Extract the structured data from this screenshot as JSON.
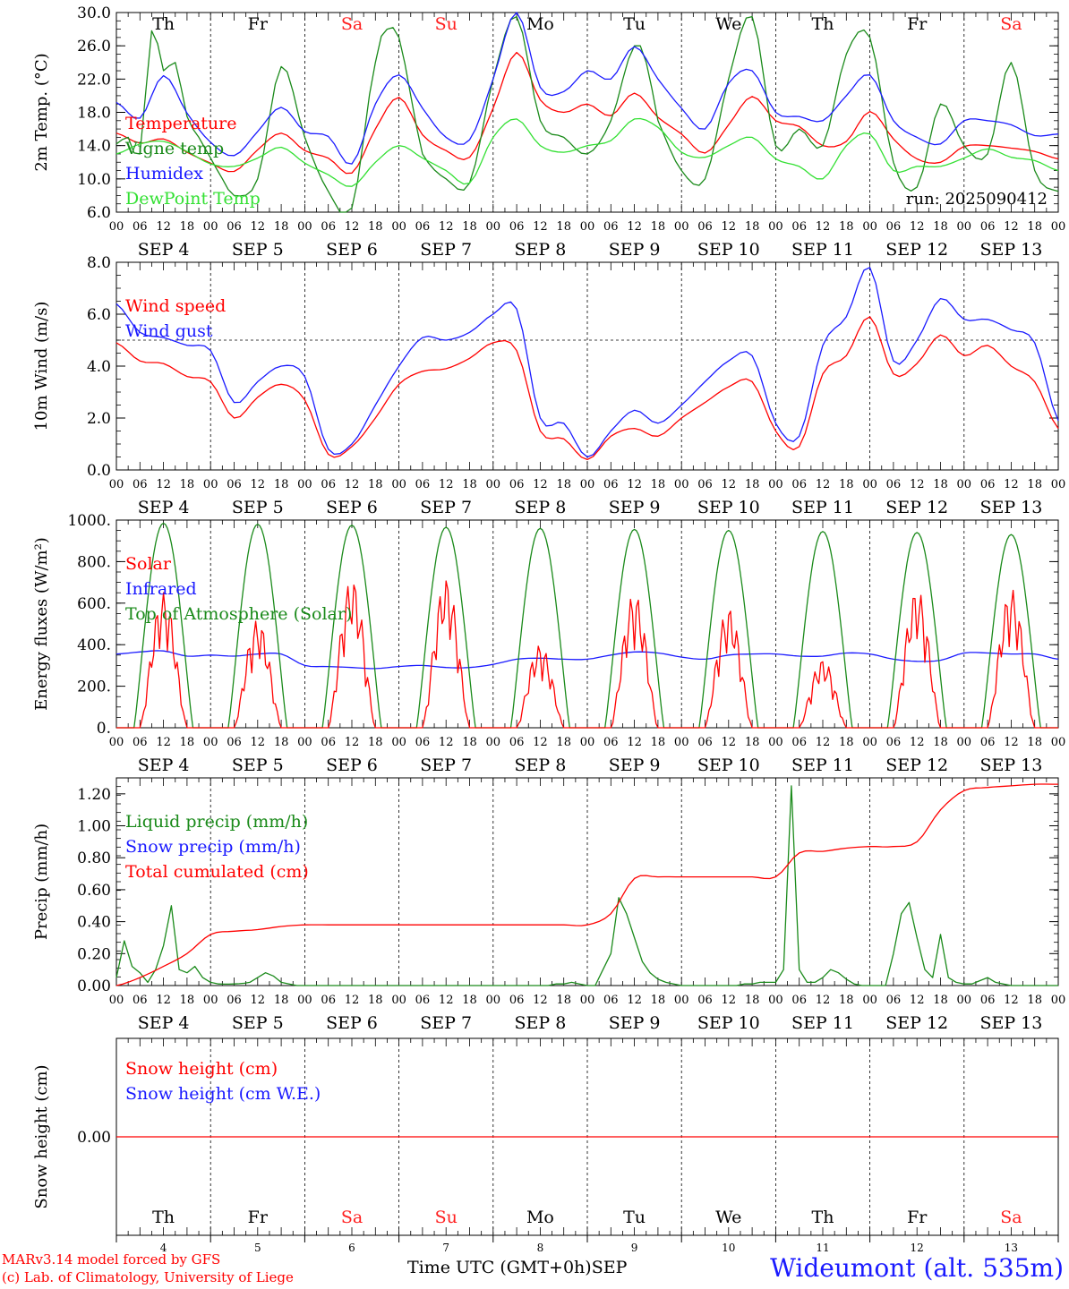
{
  "colors": {
    "red": "#ff0000",
    "green": "#1a8a1a",
    "blue": "#1a1aff",
    "lightgreen": "#33e033",
    "saturday_sunday": "#ff2020",
    "weekday": "#000000"
  },
  "days": [
    {
      "dow": "Th",
      "label": "SEP  4",
      "num": "4",
      "weekend": false
    },
    {
      "dow": "Fr",
      "label": "SEP  5",
      "num": "5",
      "weekend": false
    },
    {
      "dow": "Sa",
      "label": "SEP  6",
      "num": "6",
      "weekend": true
    },
    {
      "dow": "Su",
      "label": "SEP  7",
      "num": "7",
      "weekend": true
    },
    {
      "dow": "Mo",
      "label": "SEP  8",
      "num": "8",
      "weekend": false
    },
    {
      "dow": "Tu",
      "label": "SEP  9",
      "num": "9",
      "weekend": false
    },
    {
      "dow": "We",
      "label": "SEP 10",
      "num": "10",
      "weekend": false
    },
    {
      "dow": "Th",
      "label": "SEP 11",
      "num": "11",
      "weekend": false
    },
    {
      "dow": "Fr",
      "label": "SEP 12",
      "num": "12",
      "weekend": false
    },
    {
      "dow": "Sa",
      "label": "SEP 13",
      "num": "13",
      "weekend": true
    }
  ],
  "hour_ticks": [
    "00",
    "06",
    "12",
    "18"
  ],
  "chart_data": [
    {
      "type": "line",
      "ylabel": "2m Temp. (°C)",
      "ylim": [
        6,
        30
      ],
      "yticks": [
        "6.0",
        "10.0",
        "14.0",
        "18.0",
        "22.0",
        "26.0",
        "30.0"
      ],
      "x_unit": "hours since SEP 4 00 UTC",
      "annotation": "run: 2025090412",
      "series": [
        {
          "name": "Temperature",
          "color": "red",
          "x": [
            0,
            6,
            12,
            18,
            24,
            30,
            36,
            42,
            48,
            54,
            60,
            66,
            72,
            78,
            84,
            90,
            96,
            102,
            108,
            114,
            120,
            126,
            132,
            138,
            144,
            150,
            156,
            162,
            168,
            174,
            180,
            186,
            192,
            198,
            204,
            210,
            216,
            222,
            228,
            234,
            240
          ],
          "values": [
            15.5,
            14.3,
            14.8,
            13.2,
            11.9,
            10.9,
            13.5,
            15.5,
            13.4,
            12.5,
            10.7,
            16,
            19.8,
            15.3,
            13.4,
            12.6,
            18.5,
            25.2,
            19.5,
            18,
            19,
            17.6,
            20.3,
            17.4,
            15.4,
            13.1,
            16.5,
            19.9,
            17,
            16.3,
            14,
            14.5,
            18.1,
            14.8,
            12.4,
            12,
            13.9,
            14,
            13.7,
            13.3,
            12.4
          ]
        },
        {
          "name": "Vigne temp",
          "color": "green",
          "x": [
            0,
            3,
            6,
            9,
            12,
            15,
            18,
            21,
            24,
            27,
            30,
            36,
            42,
            48,
            54,
            60,
            66,
            69,
            72,
            75,
            78,
            84,
            90,
            96,
            102,
            108,
            114,
            120,
            126,
            132,
            135,
            138,
            144,
            150,
            156,
            162,
            168,
            174,
            180,
            186,
            192,
            198,
            204,
            210,
            216,
            222,
            228,
            234,
            240
          ],
          "values": [
            14.2,
            15,
            13,
            27.8,
            23,
            24,
            17.5,
            15,
            12.5,
            10,
            8,
            10,
            23.5,
            15,
            8.5,
            6.5,
            24,
            28,
            27,
            20,
            13,
            10,
            9.5,
            22,
            29.5,
            17,
            15,
            13,
            17,
            26,
            24,
            17,
            11,
            10,
            22,
            29.5,
            14,
            16,
            14,
            25,
            27,
            12,
            9,
            19,
            14,
            13,
            24,
            11,
            8.5
          ]
        },
        {
          "name": "Humidex",
          "color": "blue",
          "x": [
            0,
            6,
            12,
            18,
            24,
            30,
            36,
            42,
            48,
            54,
            60,
            66,
            72,
            78,
            84,
            90,
            96,
            102,
            108,
            114,
            120,
            126,
            132,
            138,
            144,
            150,
            156,
            162,
            168,
            174,
            180,
            186,
            192,
            198,
            204,
            210,
            216,
            222,
            228,
            234,
            240
          ],
          "values": [
            19.2,
            17.3,
            22.4,
            17.9,
            14.4,
            12.8,
            15.7,
            18.6,
            15.7,
            15.1,
            11.8,
            19,
            22.5,
            18.5,
            15,
            14.7,
            22,
            30,
            21,
            20.5,
            23,
            22,
            25.9,
            22,
            18.5,
            16,
            21.5,
            23,
            18,
            17.5,
            17,
            20,
            22.5,
            17,
            15,
            14.2,
            17,
            17,
            16.5,
            15.2,
            15.4
          ]
        },
        {
          "name": "DewPoint Temp",
          "color": "lightgreen",
          "x": [
            0,
            6,
            12,
            18,
            24,
            30,
            36,
            42,
            48,
            54,
            60,
            66,
            72,
            78,
            84,
            90,
            96,
            102,
            108,
            114,
            120,
            126,
            132,
            138,
            144,
            150,
            156,
            162,
            168,
            174,
            180,
            186,
            192,
            198,
            204,
            210,
            216,
            222,
            228,
            234,
            240
          ],
          "values": [
            13,
            14.2,
            14.5,
            13.3,
            11.8,
            11.5,
            12.5,
            13.8,
            11.9,
            10.5,
            9.1,
            12,
            14,
            12.5,
            11,
            9.5,
            15,
            17.2,
            14,
            13.2,
            14,
            14.6,
            17.2,
            16.2,
            13.2,
            12.6,
            14,
            15,
            12.4,
            11.5,
            10,
            14,
            15.4,
            11,
            11.5,
            11.5,
            12.5,
            13.6,
            12.6,
            12.2,
            11
          ]
        }
      ]
    },
    {
      "type": "line",
      "ylabel": "10m Wind (m/s)",
      "ylim": [
        0,
        8
      ],
      "yticks": [
        "0.0",
        "2.0",
        "4.0",
        "6.0",
        "8.0"
      ],
      "reference_line": 5,
      "series": [
        {
          "name": "Wind speed",
          "color": "red",
          "x": [
            0,
            6,
            12,
            18,
            24,
            30,
            36,
            42,
            48,
            54,
            60,
            66,
            72,
            78,
            84,
            90,
            96,
            102,
            108,
            114,
            120,
            126,
            132,
            138,
            144,
            150,
            156,
            162,
            168,
            174,
            180,
            186,
            192,
            198,
            204,
            210,
            216,
            222,
            228,
            234,
            240
          ],
          "values": [
            4.9,
            4.2,
            4.1,
            3.6,
            3.4,
            2,
            2.8,
            3.3,
            2.7,
            0.6,
            0.9,
            2,
            3.3,
            3.8,
            3.9,
            4.3,
            4.9,
            4.6,
            1.5,
            1.2,
            0.4,
            1.3,
            1.6,
            1.3,
            2,
            2.6,
            3.2,
            3.4,
            1.5,
            0.9,
            3.7,
            4.4,
            5.9,
            3.7,
            4.1,
            5.2,
            4.4,
            4.8,
            4,
            3.4,
            1.6
          ]
        },
        {
          "name": "Wind gust",
          "color": "blue",
          "x": [
            0,
            6,
            12,
            18,
            24,
            30,
            36,
            42,
            48,
            54,
            60,
            66,
            72,
            78,
            84,
            90,
            96,
            102,
            108,
            114,
            120,
            126,
            132,
            138,
            144,
            150,
            156,
            162,
            168,
            174,
            180,
            186,
            192,
            198,
            204,
            210,
            216,
            222,
            228,
            234,
            240
          ],
          "values": [
            6.4,
            5.3,
            5.1,
            4.8,
            4.6,
            2.6,
            3.4,
            4,
            3.6,
            0.8,
            1,
            2.5,
            4,
            5.1,
            5,
            5.3,
            6,
            6.2,
            2,
            1.8,
            0.5,
            1.5,
            2.3,
            1.8,
            2.5,
            3.4,
            4.2,
            4.4,
            1.8,
            1.3,
            4.8,
            5.9,
            7.8,
            4.2,
            5,
            6.6,
            5.8,
            5.8,
            5.4,
            4.9,
            1.9
          ]
        }
      ]
    },
    {
      "type": "line",
      "ylabel": "Energy fluxes (W/m²)",
      "ylim": [
        0,
        1000
      ],
      "yticks": [
        "0.",
        "200.",
        "400.",
        "600.",
        "800.",
        "1000."
      ],
      "daily_peaks": {
        "toa_solar": [
          985,
          980,
          975,
          965,
          960,
          955,
          950,
          945,
          940,
          930
        ],
        "solar": [
          650,
          520,
          720,
          720,
          400,
          650,
          580,
          330,
          670,
          670
        ]
      },
      "series": [
        {
          "name": "Solar",
          "color": "red",
          "x": [],
          "values": []
        },
        {
          "name": "Infrared",
          "color": "blue",
          "x": [
            0,
            6,
            12,
            18,
            24,
            30,
            36,
            42,
            48,
            54,
            60,
            66,
            72,
            78,
            84,
            90,
            96,
            102,
            108,
            114,
            120,
            126,
            132,
            138,
            144,
            150,
            156,
            162,
            168,
            174,
            180,
            186,
            192,
            198,
            204,
            210,
            216,
            222,
            228,
            234,
            240
          ],
          "values": [
            355,
            365,
            370,
            345,
            350,
            345,
            355,
            355,
            300,
            295,
            290,
            285,
            295,
            300,
            290,
            290,
            305,
            330,
            335,
            330,
            330,
            350,
            365,
            360,
            340,
            330,
            350,
            355,
            355,
            345,
            345,
            360,
            355,
            330,
            320,
            325,
            360,
            360,
            355,
            355,
            330
          ]
        },
        {
          "name": "Top of Atmosphere (Solar)",
          "color": "green",
          "x": [],
          "values": []
        }
      ]
    },
    {
      "type": "line",
      "ylabel": "Precip (mm/h)",
      "ylim": [
        0,
        1.3
      ],
      "yticks": [
        "0.00",
        "0.20",
        "0.40",
        "0.60",
        "0.80",
        "1.00",
        "1.20"
      ],
      "series": [
        {
          "name": "Liquid precip (mm/h)",
          "color": "green",
          "x": [
            0,
            2,
            4,
            6,
            8,
            10,
            12,
            14,
            16,
            18,
            20,
            22,
            24,
            26,
            30,
            34,
            36,
            38,
            40,
            42,
            44,
            46,
            48,
            50,
            60,
            108,
            110,
            112,
            114,
            116,
            118,
            120,
            122,
            124,
            126,
            128,
            130,
            132,
            134,
            136,
            138,
            140,
            142,
            144,
            146,
            148,
            150,
            152,
            154,
            156,
            158,
            160,
            162,
            164,
            166,
            168,
            170,
            172,
            174,
            176,
            178,
            180,
            182,
            184,
            186,
            188,
            190,
            192,
            194,
            196,
            198,
            200,
            202,
            204,
            206,
            208,
            210,
            212,
            214,
            216,
            218,
            220,
            222,
            224,
            226,
            228,
            230,
            232,
            234,
            236,
            238,
            240
          ],
          "values": [
            0.05,
            0.28,
            0.12,
            0.08,
            0.02,
            0.1,
            0.25,
            0.5,
            0.1,
            0.08,
            0.12,
            0.05,
            0.02,
            0.01,
            0.01,
            0.02,
            0.05,
            0.08,
            0.06,
            0.02,
            0.01,
            0,
            0,
            0,
            0,
            0,
            0,
            0.01,
            0.01,
            0.02,
            0.01,
            0,
            0,
            0.1,
            0.2,
            0.55,
            0.45,
            0.3,
            0.15,
            0.08,
            0.04,
            0.02,
            0.01,
            0,
            0,
            0,
            0,
            0,
            0,
            0,
            0,
            0.01,
            0.01,
            0.02,
            0.02,
            0.02,
            0.1,
            1.25,
            0.1,
            0.02,
            0.02,
            0.05,
            0.1,
            0.08,
            0.04,
            0.01,
            0,
            0,
            0,
            0,
            0.2,
            0.45,
            0.52,
            0.3,
            0.1,
            0.05,
            0.32,
            0.05,
            0.02,
            0.01,
            0.01,
            0.03,
            0.05,
            0.02,
            0.01,
            0,
            0,
            0,
            0,
            0,
            0,
            0
          ]
        },
        {
          "name": "Snow precip (mm/h)",
          "color": "blue",
          "x": [],
          "values": []
        },
        {
          "name": "Total cumulated (cm)",
          "color": "red",
          "x": [
            0,
            6,
            12,
            18,
            24,
            30,
            36,
            42,
            48,
            54,
            60,
            66,
            72,
            78,
            84,
            90,
            96,
            102,
            108,
            114,
            120,
            126,
            132,
            138,
            144,
            150,
            156,
            162,
            168,
            174,
            180,
            186,
            192,
            198,
            204,
            210,
            216,
            222,
            228,
            234,
            240
          ],
          "values": [
            0,
            0.05,
            0.12,
            0.2,
            0.32,
            0.34,
            0.35,
            0.37,
            0.38,
            0.38,
            0.38,
            0.38,
            0.38,
            0.38,
            0.38,
            0.38,
            0.38,
            0.38,
            0.38,
            0.38,
            0.38,
            0.45,
            0.67,
            0.68,
            0.68,
            0.68,
            0.68,
            0.68,
            0.68,
            0.83,
            0.84,
            0.86,
            0.87,
            0.87,
            0.9,
            1.1,
            1.22,
            1.24,
            1.25,
            1.26,
            1.26
          ]
        }
      ]
    },
    {
      "type": "line",
      "ylabel": "Snow height (cm)",
      "ylim": [
        -1,
        1
      ],
      "yticks": [
        "0.00"
      ],
      "series": [
        {
          "name": "Snow height (cm)",
          "color": "red",
          "x": [
            0,
            240
          ],
          "values": [
            0,
            0
          ]
        },
        {
          "name": "Snow height (cm W.E.)",
          "color": "blue",
          "x": [],
          "values": []
        }
      ]
    }
  ],
  "footer": {
    "credit_line1": "MARv3.14 model forced by GFS",
    "credit_line2": "(c) Lab. of Climatology, University of Liege",
    "time_label": "Time UTC (GMT+0h)",
    "month": "SEP",
    "station": "Wideumont (alt. 535m)"
  }
}
